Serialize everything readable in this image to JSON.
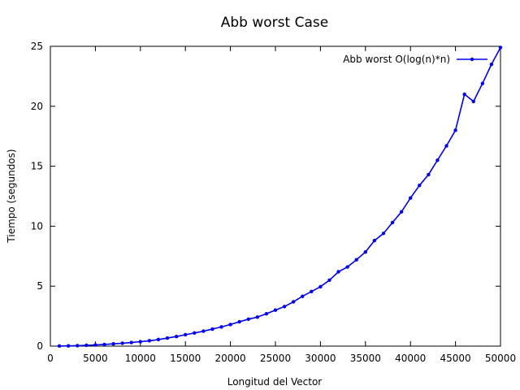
{
  "chart_data": {
    "type": "line",
    "title": "Abb worst Case",
    "xlabel": "Longitud del Vector",
    "ylabel": "Tiempo (segundos)",
    "xlim": [
      0,
      50000
    ],
    "ylim": [
      0,
      25
    ],
    "x_ticks": [
      0,
      5000,
      10000,
      15000,
      20000,
      25000,
      30000,
      35000,
      40000,
      45000,
      50000
    ],
    "y_ticks": [
      0,
      5,
      10,
      15,
      20,
      25
    ],
    "x_tick_labels": [
      "0",
      "5000",
      "10000",
      "15000",
      "20000",
      "25000",
      "30000",
      "35000",
      "40000",
      "45000",
      "50000"
    ],
    "y_tick_labels": [
      "0",
      "5",
      "10",
      "15",
      "20",
      "25"
    ],
    "grid": false,
    "legend_position": "top-right",
    "series": [
      {
        "name": "Abb worst O(log(n)*n)",
        "color": "#0000ee",
        "x": [
          1000,
          2000,
          3000,
          4000,
          5000,
          6000,
          7000,
          8000,
          9000,
          10000,
          11000,
          12000,
          13000,
          14000,
          15000,
          16000,
          17000,
          18000,
          19000,
          20000,
          21000,
          22000,
          23000,
          24000,
          25000,
          26000,
          27000,
          28000,
          29000,
          30000,
          31000,
          32000,
          33000,
          34000,
          35000,
          36000,
          37000,
          38000,
          39000,
          40000,
          41000,
          42000,
          43000,
          44000,
          45000,
          46000,
          47000,
          48000,
          49000,
          50000
        ],
        "y": [
          0.01,
          0.02,
          0.04,
          0.07,
          0.1,
          0.14,
          0.19,
          0.24,
          0.3,
          0.37,
          0.45,
          0.55,
          0.67,
          0.8,
          0.95,
          1.1,
          1.25,
          1.42,
          1.6,
          1.8,
          2.03,
          2.25,
          2.42,
          2.7,
          3.0,
          3.3,
          3.7,
          4.15,
          4.55,
          4.95,
          5.5,
          6.2,
          6.6,
          7.2,
          7.85,
          8.8,
          9.4,
          10.3,
          11.2,
          12.35,
          13.4,
          14.3,
          15.5,
          16.7,
          18.0,
          21.0,
          20.4,
          21.9,
          23.5,
          24.9
        ]
      }
    ]
  }
}
